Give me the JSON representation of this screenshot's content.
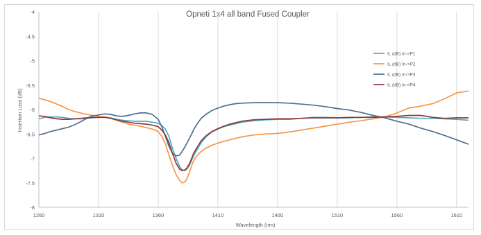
{
  "chart_data": {
    "type": "line",
    "title": "Opneti 1x4 all band Fused Coupler",
    "xlabel": "Wavelength (nm)",
    "ylabel": "Insertion Loss (dB)",
    "xlim": [
      1260,
      1620
    ],
    "ylim": [
      -8,
      -4
    ],
    "xticks": [
      1260,
      1310,
      1360,
      1410,
      1460,
      1510,
      1560,
      1610
    ],
    "yticks": [
      -4,
      -4.5,
      -5,
      -5.5,
      -6,
      -6.5,
      -7,
      -7.5,
      -8
    ],
    "grid": "vertical",
    "legend_position": "right",
    "series": [
      {
        "name": "IL (dB) In->P1",
        "color": "#4bacc6",
        "x": [
          1260,
          1265,
          1270,
          1275,
          1280,
          1285,
          1290,
          1295,
          1300,
          1305,
          1310,
          1315,
          1320,
          1325,
          1330,
          1335,
          1340,
          1345,
          1350,
          1355,
          1360,
          1363,
          1366,
          1369,
          1372,
          1375,
          1378,
          1380,
          1382,
          1384,
          1386,
          1388,
          1390,
          1393,
          1396,
          1400,
          1405,
          1410,
          1415,
          1420,
          1425,
          1430,
          1440,
          1450,
          1460,
          1470,
          1480,
          1490,
          1500,
          1510,
          1520,
          1530,
          1540,
          1550,
          1560,
          1570,
          1580,
          1590,
          1600,
          1610,
          1620
        ],
        "y": [
          -6.19,
          -6.16,
          -6.15,
          -6.15,
          -6.16,
          -6.18,
          -6.19,
          -6.19,
          -6.18,
          -6.17,
          -6.16,
          -6.15,
          -6.17,
          -6.2,
          -6.22,
          -6.23,
          -6.24,
          -6.24,
          -6.24,
          -6.26,
          -6.28,
          -6.33,
          -6.4,
          -6.55,
          -6.8,
          -7.0,
          -7.17,
          -7.23,
          -7.25,
          -7.22,
          -7.15,
          -7.04,
          -6.93,
          -6.8,
          -6.68,
          -6.56,
          -6.46,
          -6.4,
          -6.35,
          -6.32,
          -6.29,
          -6.26,
          -6.23,
          -6.21,
          -6.2,
          -6.2,
          -6.18,
          -6.16,
          -6.16,
          -6.17,
          -6.17,
          -6.16,
          -6.15,
          -6.15,
          -6.16,
          -6.17,
          -6.18,
          -6.18,
          -6.19,
          -6.2,
          -6.22
        ]
      },
      {
        "name": "IL (dB) In->P2",
        "color": "#f79646",
        "x": [
          1260,
          1265,
          1270,
          1275,
          1280,
          1285,
          1290,
          1295,
          1300,
          1305,
          1310,
          1315,
          1320,
          1325,
          1330,
          1335,
          1340,
          1345,
          1350,
          1355,
          1360,
          1363,
          1366,
          1369,
          1372,
          1375,
          1378,
          1380,
          1382,
          1384,
          1386,
          1388,
          1390,
          1393,
          1396,
          1400,
          1405,
          1410,
          1415,
          1420,
          1425,
          1430,
          1440,
          1450,
          1460,
          1470,
          1480,
          1490,
          1500,
          1510,
          1520,
          1530,
          1540,
          1550,
          1560,
          1570,
          1580,
          1590,
          1600,
          1610,
          1620
        ],
        "y": [
          -5.77,
          -5.8,
          -5.84,
          -5.89,
          -5.94,
          -6.0,
          -6.04,
          -6.07,
          -6.1,
          -6.12,
          -6.14,
          -6.15,
          -6.18,
          -6.22,
          -6.26,
          -6.3,
          -6.32,
          -6.34,
          -6.37,
          -6.4,
          -6.45,
          -6.55,
          -6.7,
          -6.93,
          -7.15,
          -7.33,
          -7.45,
          -7.5,
          -7.49,
          -7.42,
          -7.3,
          -7.15,
          -7.03,
          -6.93,
          -6.86,
          -6.79,
          -6.73,
          -6.69,
          -6.65,
          -6.62,
          -6.59,
          -6.56,
          -6.52,
          -6.5,
          -6.49,
          -6.46,
          -6.42,
          -6.38,
          -6.34,
          -6.3,
          -6.26,
          -6.23,
          -6.19,
          -6.15,
          -6.07,
          -5.97,
          -5.93,
          -5.88,
          -5.78,
          -5.66,
          -5.62
        ]
      },
      {
        "name": "IL (dB) In->P3",
        "color": "#4f6d8f",
        "x": [
          1260,
          1265,
          1270,
          1275,
          1280,
          1285,
          1290,
          1295,
          1300,
          1305,
          1310,
          1315,
          1320,
          1325,
          1330,
          1335,
          1340,
          1345,
          1350,
          1355,
          1360,
          1363,
          1366,
          1369,
          1372,
          1375,
          1378,
          1380,
          1382,
          1384,
          1386,
          1388,
          1390,
          1393,
          1396,
          1400,
          1405,
          1410,
          1415,
          1420,
          1425,
          1430,
          1440,
          1450,
          1460,
          1470,
          1480,
          1490,
          1500,
          1510,
          1520,
          1530,
          1540,
          1550,
          1560,
          1570,
          1580,
          1590,
          1600,
          1610,
          1620
        ],
        "y": [
          -6.52,
          -6.49,
          -6.45,
          -6.42,
          -6.39,
          -6.36,
          -6.31,
          -6.25,
          -6.18,
          -6.13,
          -6.11,
          -6.09,
          -6.1,
          -6.13,
          -6.14,
          -6.12,
          -6.09,
          -6.07,
          -6.07,
          -6.1,
          -6.2,
          -6.35,
          -6.55,
          -6.75,
          -6.9,
          -6.95,
          -6.93,
          -6.86,
          -6.78,
          -6.69,
          -6.6,
          -6.5,
          -6.4,
          -6.28,
          -6.18,
          -6.1,
          -6.02,
          -5.97,
          -5.93,
          -5.9,
          -5.88,
          -5.87,
          -5.86,
          -5.86,
          -5.86,
          -5.87,
          -5.89,
          -5.91,
          -5.94,
          -5.98,
          -6.01,
          -6.06,
          -6.12,
          -6.17,
          -6.24,
          -6.3,
          -6.38,
          -6.45,
          -6.53,
          -6.62,
          -6.71
        ]
      },
      {
        "name": "IL (dB) In->P4",
        "color": "#8b3a3a",
        "x": [
          1260,
          1265,
          1270,
          1275,
          1280,
          1285,
          1290,
          1295,
          1300,
          1305,
          1310,
          1315,
          1320,
          1325,
          1330,
          1335,
          1340,
          1345,
          1350,
          1355,
          1360,
          1363,
          1366,
          1369,
          1372,
          1375,
          1378,
          1380,
          1382,
          1384,
          1386,
          1388,
          1390,
          1393,
          1396,
          1400,
          1405,
          1410,
          1415,
          1420,
          1425,
          1430,
          1440,
          1450,
          1460,
          1470,
          1480,
          1490,
          1500,
          1510,
          1520,
          1530,
          1540,
          1550,
          1560,
          1570,
          1580,
          1590,
          1600,
          1610,
          1620
        ],
        "y": [
          -6.13,
          -6.14,
          -6.17,
          -6.19,
          -6.2,
          -6.2,
          -6.19,
          -6.18,
          -6.17,
          -6.16,
          -6.16,
          -6.16,
          -6.18,
          -6.21,
          -6.24,
          -6.26,
          -6.28,
          -6.29,
          -6.3,
          -6.32,
          -6.35,
          -6.42,
          -6.52,
          -6.68,
          -6.9,
          -7.1,
          -7.22,
          -7.25,
          -7.24,
          -7.2,
          -7.12,
          -7.0,
          -6.88,
          -6.76,
          -6.64,
          -6.54,
          -6.45,
          -6.39,
          -6.34,
          -6.3,
          -6.27,
          -6.24,
          -6.21,
          -6.2,
          -6.19,
          -6.19,
          -6.18,
          -6.17,
          -6.17,
          -6.17,
          -6.16,
          -6.16,
          -6.16,
          -6.15,
          -6.14,
          -6.12,
          -6.12,
          -6.16,
          -6.18,
          -6.17,
          -6.17
        ]
      }
    ]
  }
}
